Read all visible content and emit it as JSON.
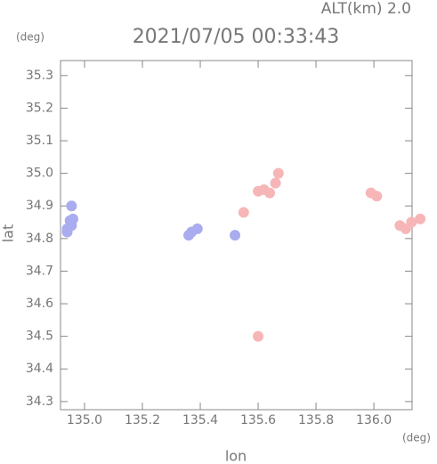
{
  "chart_data": {
    "type": "scatter",
    "title": "2021/07/05 00:33:43",
    "subtitle": "ALT(km) 2.0",
    "x_label": "lon",
    "y_label": "lat",
    "x_unit": "(deg)",
    "y_unit": "(deg)",
    "xlim": [
      134.917,
      136.132
    ],
    "ylim": [
      34.275,
      35.346
    ],
    "xticks": [
      {
        "value": 135.0,
        "label": "135.0"
      },
      135.2,
      135.4,
      135.6,
      135.8,
      {
        "value": 136.0,
        "label": "136.0"
      }
    ],
    "yticks": [
      34.3,
      34.4,
      34.5,
      34.6,
      34.7,
      34.8,
      34.9,
      {
        "value": 35.0,
        "label": "35.0"
      },
      35.1,
      35.2,
      35.3
    ],
    "series": [
      {
        "color": "#a9acee",
        "x": [
          134.94,
          134.955,
          134.95,
          134.94,
          134.96,
          134.955,
          135.37,
          135.39,
          135.36,
          135.52
        ],
        "y": [
          34.83,
          34.84,
          34.855,
          34.82,
          34.86,
          34.9,
          34.82,
          34.83,
          34.81,
          34.81
        ]
      },
      {
        "color": "#f6b6b8",
        "x": [
          135.6,
          135.62,
          135.64,
          135.67,
          135.66,
          135.99,
          136.01,
          136.09,
          136.11,
          136.13,
          136.16,
          135.6,
          135.55
        ],
        "y": [
          34.945,
          34.95,
          34.94,
          35.0,
          34.97,
          34.94,
          34.93,
          34.84,
          34.83,
          34.85,
          34.86,
          34.5,
          34.88
        ]
      }
    ]
  }
}
